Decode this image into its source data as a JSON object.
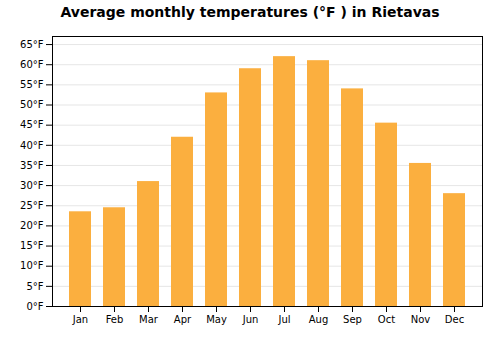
{
  "chart_data": {
    "type": "bar",
    "title": "Average monthly temperatures (°F ) in Rietavas",
    "categories": [
      "Jan",
      "Feb",
      "Mar",
      "Apr",
      "May",
      "Jun",
      "Jul",
      "Aug",
      "Sep",
      "Oct",
      "Nov",
      "Dec"
    ],
    "values": [
      23.5,
      24.5,
      31.0,
      42.0,
      53.0,
      59.0,
      62.0,
      61.0,
      54.0,
      45.5,
      35.5,
      28.0
    ],
    "color": "#FBAF3F",
    "ylim": [
      0,
      67
    ],
    "yticks": [
      {
        "value": 0,
        "label": "0°F"
      },
      {
        "value": 5,
        "label": "5°F"
      },
      {
        "value": 10,
        "label": "10°F"
      },
      {
        "value": 15,
        "label": "15°F"
      },
      {
        "value": 20,
        "label": "20°F"
      },
      {
        "value": 25,
        "label": "25°F"
      },
      {
        "value": 30,
        "label": "30°F"
      },
      {
        "value": 35,
        "label": "35°F"
      },
      {
        "value": 40,
        "label": "40°F"
      },
      {
        "value": 45,
        "label": "45°F"
      },
      {
        "value": 50,
        "label": "50°F"
      },
      {
        "value": 55,
        "label": "55°F"
      },
      {
        "value": 60,
        "label": "60°F"
      },
      {
        "value": 65,
        "label": "65°F"
      }
    ],
    "grid": true
  }
}
